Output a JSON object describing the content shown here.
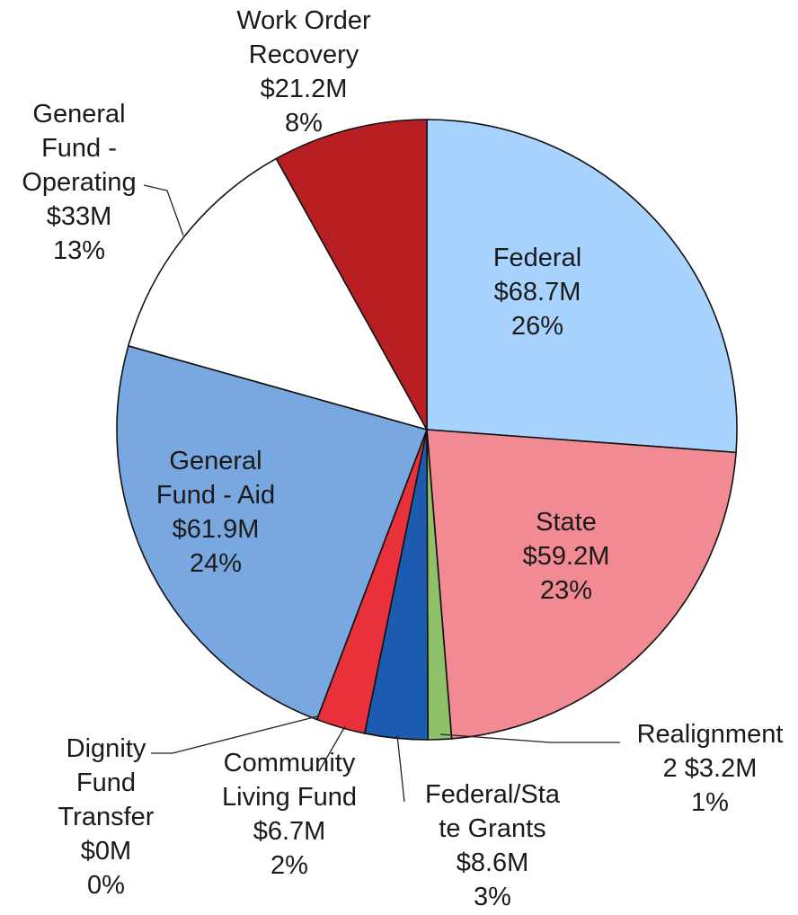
{
  "chart_data": {
    "type": "pie",
    "slices": [
      {
        "label_lines": [
          "Federal",
          "$68.7M",
          "26%"
        ],
        "value": 68.7,
        "percent": "26%",
        "color": "#a9d3ff"
      },
      {
        "label_lines": [
          "State",
          "$59.2M",
          "23%"
        ],
        "value": 59.2,
        "percent": "23%",
        "color": "#f28a93"
      },
      {
        "label_lines": [
          "Realignment",
          "2 $3.2M",
          "1%"
        ],
        "value": 3.2,
        "percent": "1%",
        "color": "#8fc06a"
      },
      {
        "label_lines": [
          "Federal/Sta",
          "te Grants",
          "$8.6M",
          "3%"
        ],
        "value": 8.6,
        "percent": "3%",
        "color": "#1c5cb0"
      },
      {
        "label_lines": [
          "Community",
          "Living Fund",
          "$6.7M",
          "2%"
        ],
        "value": 6.7,
        "percent": "2%",
        "color": "#e8313a"
      },
      {
        "label_lines": [
          "Dignity",
          "Fund",
          "Transfer",
          "$0M",
          "0%"
        ],
        "value": 0,
        "percent": "0%",
        "color": "#c9c9c9"
      },
      {
        "label_lines": [
          "General",
          "Fund - Aid",
          "$61.9M",
          "24%"
        ],
        "value": 61.9,
        "percent": "24%",
        "color": "#79a8e0"
      },
      {
        "label_lines": [
          "General",
          "Fund -",
          "Operating",
          "$33M",
          "13%"
        ],
        "value": 33,
        "percent": "13%",
        "color": "#ffffff"
      },
      {
        "label_lines": [
          "Work Order",
          "Recovery",
          "$21.2M",
          "8%"
        ],
        "value": 21.2,
        "percent": "8%",
        "color": "#b81f23"
      }
    ],
    "start": "12 o'clock",
    "direction": "clockwise"
  }
}
